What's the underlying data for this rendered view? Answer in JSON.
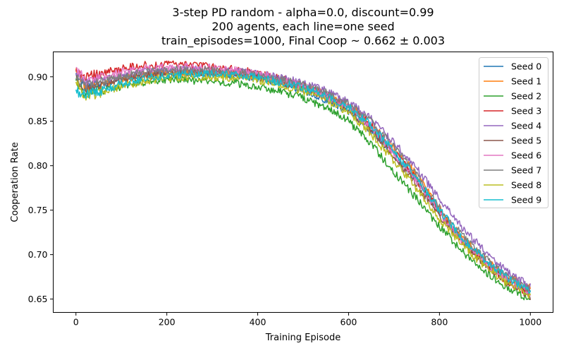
{
  "chart_data": {
    "type": "line",
    "title_lines": [
      "3-step PD random - alpha=0.0, discount=0.99",
      "200 agents, each line=one seed",
      "train_episodes=1000, Final Coop ~ 0.662 ± 0.003"
    ],
    "xlabel": "Training Episode",
    "ylabel": "Cooperation Rate",
    "xlim": [
      -50,
      1050
    ],
    "ylim": [
      0.635,
      0.928
    ],
    "xticks": [
      0,
      200,
      400,
      600,
      800,
      1000
    ],
    "yticks": [
      0.65,
      0.7,
      0.75,
      0.8,
      0.85,
      0.9
    ],
    "ytick_labels": [
      "0.65",
      "0.70",
      "0.75",
      "0.80",
      "0.85",
      "0.90"
    ],
    "grid": false,
    "legend_position": "top-right",
    "x_key": [
      0,
      50,
      100,
      150,
      200,
      250,
      300,
      350,
      400,
      450,
      500,
      550,
      600,
      650,
      700,
      750,
      800,
      850,
      900,
      950,
      1000
    ],
    "series": [
      {
        "name": "Seed 0",
        "color": "#1f77b4",
        "start": 0.905,
        "values": [
          0.884,
          0.892,
          0.898,
          0.903,
          0.905,
          0.905,
          0.904,
          0.902,
          0.899,
          0.893,
          0.885,
          0.874,
          0.862,
          0.84,
          0.812,
          0.783,
          0.748,
          0.717,
          0.692,
          0.673,
          0.66
        ]
      },
      {
        "name": "Seed 1",
        "color": "#ff7f0e",
        "start": 0.91,
        "values": [
          0.884,
          0.89,
          0.897,
          0.902,
          0.904,
          0.905,
          0.905,
          0.904,
          0.9,
          0.895,
          0.889,
          0.88,
          0.868,
          0.848,
          0.82,
          0.79,
          0.752,
          0.719,
          0.694,
          0.675,
          0.662
        ]
      },
      {
        "name": "Seed 2",
        "color": "#2ca02c",
        "start": 0.896,
        "values": [
          0.878,
          0.884,
          0.889,
          0.894,
          0.896,
          0.896,
          0.895,
          0.893,
          0.889,
          0.883,
          0.876,
          0.866,
          0.85,
          0.825,
          0.792,
          0.763,
          0.732,
          0.704,
          0.681,
          0.663,
          0.65
        ]
      },
      {
        "name": "Seed 3",
        "color": "#d62728",
        "start": 0.906,
        "values": [
          0.896,
          0.903,
          0.909,
          0.913,
          0.914,
          0.913,
          0.911,
          0.908,
          0.904,
          0.898,
          0.89,
          0.879,
          0.866,
          0.845,
          0.816,
          0.784,
          0.748,
          0.716,
          0.69,
          0.67,
          0.656
        ]
      },
      {
        "name": "Seed 4",
        "color": "#9467bd",
        "start": 0.902,
        "values": [
          0.888,
          0.895,
          0.901,
          0.906,
          0.908,
          0.908,
          0.907,
          0.906,
          0.903,
          0.899,
          0.893,
          0.884,
          0.872,
          0.852,
          0.826,
          0.797,
          0.762,
          0.73,
          0.704,
          0.68,
          0.664
        ]
      },
      {
        "name": "Seed 5",
        "color": "#8c564b",
        "start": 0.9,
        "values": [
          0.884,
          0.89,
          0.896,
          0.901,
          0.903,
          0.904,
          0.904,
          0.902,
          0.899,
          0.894,
          0.887,
          0.877,
          0.863,
          0.84,
          0.81,
          0.779,
          0.744,
          0.714,
          0.689,
          0.668,
          0.653
        ]
      },
      {
        "name": "Seed 6",
        "color": "#e377c2",
        "start": 0.91,
        "values": [
          0.893,
          0.899,
          0.905,
          0.909,
          0.911,
          0.911,
          0.91,
          0.907,
          0.903,
          0.897,
          0.889,
          0.879,
          0.865,
          0.843,
          0.814,
          0.783,
          0.747,
          0.716,
          0.691,
          0.671,
          0.657
        ]
      },
      {
        "name": "Seed 7",
        "color": "#7f7f7f",
        "start": 0.898,
        "values": [
          0.887,
          0.894,
          0.9,
          0.905,
          0.907,
          0.908,
          0.907,
          0.905,
          0.902,
          0.897,
          0.891,
          0.882,
          0.869,
          0.849,
          0.821,
          0.79,
          0.753,
          0.722,
          0.696,
          0.675,
          0.66
        ]
      },
      {
        "name": "Seed 8",
        "color": "#bcbd22",
        "start": 0.893,
        "values": [
          0.876,
          0.882,
          0.889,
          0.895,
          0.899,
          0.9,
          0.9,
          0.899,
          0.896,
          0.891,
          0.884,
          0.874,
          0.86,
          0.836,
          0.804,
          0.774,
          0.74,
          0.711,
          0.687,
          0.667,
          0.654
        ]
      },
      {
        "name": "Seed 9",
        "color": "#17becf",
        "start": 0.884,
        "values": [
          0.879,
          0.884,
          0.892,
          0.898,
          0.901,
          0.903,
          0.903,
          0.902,
          0.899,
          0.894,
          0.888,
          0.879,
          0.866,
          0.845,
          0.816,
          0.786,
          0.75,
          0.719,
          0.694,
          0.673,
          0.658
        ]
      }
    ]
  }
}
